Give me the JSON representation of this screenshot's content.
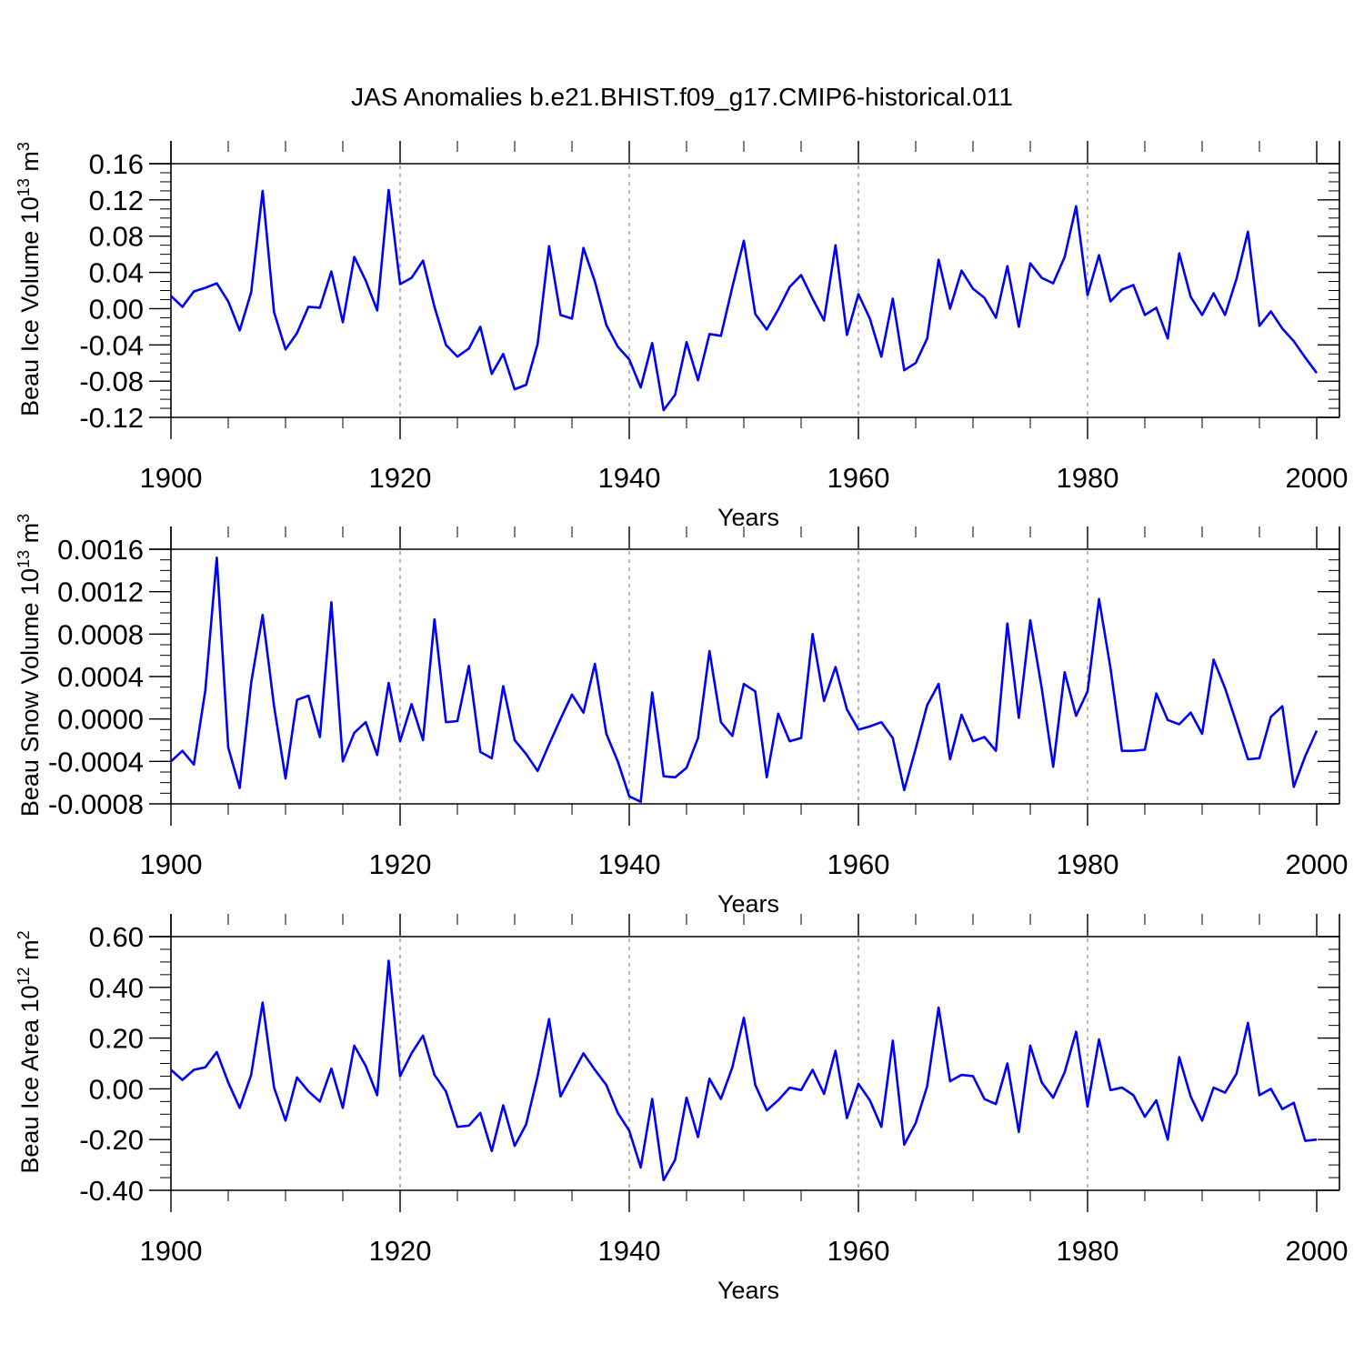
{
  "title": "JAS Anomalies b.e21.BHIST.f09_g17.CMIP6-historical.011",
  "chart_data": [
    {
      "type": "line",
      "name": "ice-volume",
      "ylabel": "Beau Ice Volume 10",
      "ylabel_exp": "13",
      "ylabel_unit": " m",
      "ylabel_unit_exp": "3",
      "xlabel": "Years",
      "xlim": [
        1900,
        2000
      ],
      "ylim": [
        -0.12,
        0.16
      ],
      "yticks": [
        -0.12,
        -0.08,
        -0.04,
        0.0,
        0.04,
        0.08,
        0.12,
        0.16
      ],
      "ytick_labels": [
        "-0.12",
        "-0.08",
        "-0.04",
        "0.00",
        "0.04",
        "0.08",
        "0.12",
        "0.16"
      ],
      "yminor": 0.01,
      "xticks": [
        1900,
        1920,
        1940,
        1960,
        1980,
        2000
      ],
      "xtick_labels": [
        "1900",
        "1920",
        "1940",
        "1960",
        "1980",
        "2000"
      ],
      "reflines": [
        1920,
        1940,
        1960,
        1980
      ],
      "series": [
        {
          "name": "Beau Ice Volume",
          "color": "#0000ff",
          "values": [
            0.014,
            0.002,
            0.019,
            0.023,
            0.028,
            0.008,
            -0.024,
            0.018,
            0.13,
            -0.004,
            -0.045,
            -0.027,
            0.002,
            0.001,
            0.041,
            -0.015,
            0.057,
            0.031,
            -0.002,
            0.131,
            0.027,
            0.034,
            0.053,
            0.002,
            -0.04,
            -0.053,
            -0.044,
            -0.02,
            -0.072,
            -0.05,
            -0.089,
            -0.084,
            -0.039,
            0.069,
            -0.007,
            -0.011,
            0.067,
            0.03,
            -0.018,
            -0.042,
            -0.056,
            -0.087,
            -0.038,
            -0.112,
            -0.095,
            -0.037,
            -0.079,
            -0.028,
            -0.03,
            0.024,
            0.075,
            -0.006,
            -0.023,
            -0.001,
            0.024,
            0.037,
            0.011,
            -0.013,
            0.07,
            -0.029,
            0.016,
            -0.011,
            -0.053,
            0.011,
            -0.068,
            -0.06,
            -0.033,
            0.054,
            0.0,
            0.042,
            0.022,
            0.012,
            -0.01,
            0.047,
            -0.02,
            0.05,
            0.034,
            0.028,
            0.057,
            0.113,
            0.015,
            0.059,
            0.008,
            0.021,
            0.026,
            -0.007,
            0.001,
            -0.033,
            0.061,
            0.013,
            -0.007,
            0.017,
            -0.007,
            0.033,
            0.085,
            -0.019,
            -0.003,
            -0.022,
            -0.036,
            -0.054,
            -0.071
          ]
        }
      ]
    },
    {
      "type": "line",
      "name": "snow-volume",
      "ylabel": "Beau Snow Volume 10",
      "ylabel_exp": "13",
      "ylabel_unit": " m",
      "ylabel_unit_exp": "3",
      "xlabel": "Years",
      "xlim": [
        1900,
        2000
      ],
      "ylim": [
        -0.0008,
        0.0016
      ],
      "yticks": [
        -0.0008,
        -0.0004,
        0.0,
        0.0004,
        0.0008,
        0.0012,
        0.0016
      ],
      "ytick_labels": [
        "-0.0008",
        "-0.0004",
        "0.0000",
        "0.0004",
        "0.0008",
        "0.0012",
        "0.0016"
      ],
      "yminor": 0.0001,
      "xticks": [
        1900,
        1920,
        1940,
        1960,
        1980,
        2000
      ],
      "xtick_labels": [
        "1900",
        "1920",
        "1940",
        "1960",
        "1980",
        "2000"
      ],
      "reflines": [
        1920,
        1940,
        1960,
        1980
      ],
      "series": [
        {
          "name": "Beau Snow Volume",
          "color": "#0000ff",
          "values": [
            -0.0004,
            -0.0003,
            -0.00043,
            0.00027,
            0.00152,
            -0.00027,
            -0.00065,
            0.00034,
            0.00098,
            0.00012,
            -0.00056,
            0.00018,
            0.00022,
            -0.00017,
            0.0011,
            -0.0004,
            -0.00013,
            -3e-05,
            -0.00034,
            0.00034,
            -0.00021,
            0.00014,
            -0.0002,
            0.00094,
            -3e-05,
            -2e-05,
            0.0005,
            -0.00031,
            -0.00037,
            0.00031,
            -0.0002,
            -0.00033,
            -0.00049,
            -0.00024,
            0.0,
            0.00023,
            6e-05,
            0.00052,
            -0.00014,
            -0.0004,
            -0.00073,
            -0.00078,
            0.00025,
            -0.00054,
            -0.00055,
            -0.00046,
            -0.00018,
            0.00064,
            -3e-05,
            -0.00016,
            0.00033,
            0.00026,
            -0.00055,
            5e-05,
            -0.00021,
            -0.00018,
            0.0008,
            0.00017,
            0.00049,
            9e-05,
            -0.0001,
            -7e-05,
            -3e-05,
            -0.00018,
            -0.00067,
            -0.00028,
            0.00013,
            0.00033,
            -0.00038,
            4e-05,
            -0.00021,
            -0.00017,
            -0.0003,
            0.0009,
            1e-05,
            0.00093,
            0.00029,
            -0.00045,
            0.00044,
            3e-05,
            0.00026,
            0.00113,
            0.00048,
            -0.0003,
            -0.0003,
            -0.00029,
            0.00024,
            -1e-05,
            -5e-05,
            6e-05,
            -0.00014,
            0.00056,
            0.00029,
            -4e-05,
            -0.00038,
            -0.00037,
            2e-05,
            0.00012,
            -0.00064,
            -0.00035,
            -0.00011
          ]
        }
      ]
    },
    {
      "type": "line",
      "name": "ice-area",
      "ylabel": "Beau Ice Area 10",
      "ylabel_exp": "12",
      "ylabel_unit": " m",
      "ylabel_unit_exp": "2",
      "xlabel": "Years",
      "xlim": [
        1900,
        2000
      ],
      "ylim": [
        -0.4,
        0.6
      ],
      "yticks": [
        -0.4,
        -0.2,
        0.0,
        0.2,
        0.4,
        0.6
      ],
      "ytick_labels": [
        "-0.40",
        "-0.20",
        "0.00",
        "0.20",
        "0.40",
        "0.60"
      ],
      "yminor": 0.05,
      "xticks": [
        1900,
        1920,
        1940,
        1960,
        1980,
        2000
      ],
      "xtick_labels": [
        "1900",
        "1920",
        "1940",
        "1960",
        "1980",
        "2000"
      ],
      "reflines": [
        1920,
        1940,
        1960,
        1980
      ],
      "series": [
        {
          "name": "Beau Ice Area",
          "color": "#0000ff",
          "values": [
            0.075,
            0.035,
            0.075,
            0.085,
            0.145,
            0.025,
            -0.075,
            0.055,
            0.34,
            0.005,
            -0.125,
            0.045,
            -0.01,
            -0.05,
            0.08,
            -0.075,
            0.17,
            0.09,
            -0.025,
            0.505,
            0.05,
            0.14,
            0.21,
            0.055,
            -0.01,
            -0.15,
            -0.145,
            -0.095,
            -0.245,
            -0.065,
            -0.225,
            -0.14,
            0.05,
            0.275,
            -0.03,
            0.055,
            0.14,
            0.075,
            0.015,
            -0.095,
            -0.165,
            -0.31,
            -0.04,
            -0.36,
            -0.28,
            -0.035,
            -0.19,
            0.04,
            -0.04,
            0.085,
            0.28,
            0.015,
            -0.085,
            -0.045,
            0.005,
            -0.005,
            0.075,
            -0.02,
            0.15,
            -0.115,
            0.02,
            -0.045,
            -0.15,
            0.19,
            -0.22,
            -0.135,
            0.01,
            0.32,
            0.03,
            0.055,
            0.05,
            -0.04,
            -0.06,
            0.1,
            -0.17,
            0.17,
            0.025,
            -0.035,
            0.065,
            0.225,
            -0.07,
            0.195,
            -0.005,
            0.005,
            -0.025,
            -0.11,
            -0.045,
            -0.2,
            0.125,
            -0.03,
            -0.125,
            0.005,
            -0.015,
            0.06,
            0.26,
            -0.025,
            0.0,
            -0.08,
            -0.055,
            -0.205,
            -0.2
          ]
        }
      ]
    }
  ]
}
